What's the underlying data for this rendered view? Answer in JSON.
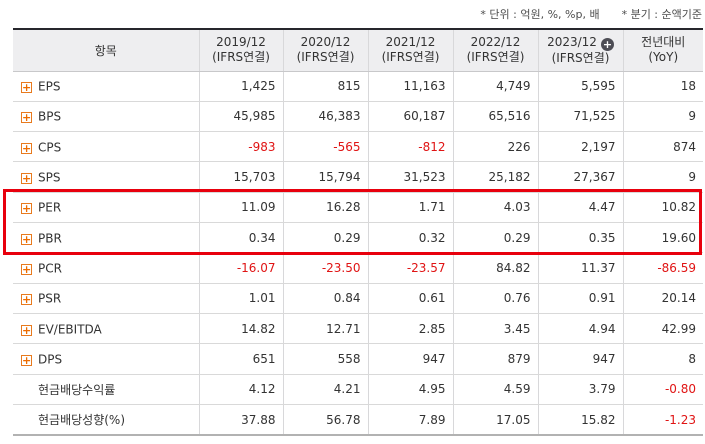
{
  "meta": {
    "unit_note": "* 단위 : 억원, %, %p, 배",
    "basis_note": "* 분기 : 순액기준"
  },
  "table": {
    "item_column_header": "항목",
    "columns": [
      {
        "period": "2019/12",
        "standard": "(IFRS연결)",
        "has_add_icon": false
      },
      {
        "period": "2020/12",
        "standard": "(IFRS연결)",
        "has_add_icon": false
      },
      {
        "period": "2021/12",
        "standard": "(IFRS연결)",
        "has_add_icon": false
      },
      {
        "period": "2022/12",
        "standard": "(IFRS연결)",
        "has_add_icon": false
      },
      {
        "period": "2023/12",
        "standard": "(IFRS연결)",
        "has_add_icon": true
      },
      {
        "period": "전년대비",
        "standard": "(YoY)",
        "has_add_icon": false
      }
    ],
    "rows": [
      {
        "label": "EPS",
        "expand_icon": true,
        "highlighted": false,
        "values": [
          "1,425",
          "815",
          "11,163",
          "4,749",
          "5,595",
          "18"
        ]
      },
      {
        "label": "BPS",
        "expand_icon": true,
        "highlighted": false,
        "values": [
          "45,985",
          "46,383",
          "60,187",
          "65,516",
          "71,525",
          "9"
        ]
      },
      {
        "label": "CPS",
        "expand_icon": true,
        "highlighted": false,
        "values": [
          "-983",
          "-565",
          "-812",
          "226",
          "2,197",
          "874"
        ]
      },
      {
        "label": "SPS",
        "expand_icon": true,
        "highlighted": false,
        "values": [
          "15,703",
          "15,794",
          "31,523",
          "25,182",
          "27,367",
          "9"
        ]
      },
      {
        "label": "PER",
        "expand_icon": true,
        "highlighted": true,
        "values": [
          "11.09",
          "16.28",
          "1.71",
          "4.03",
          "4.47",
          "10.82"
        ]
      },
      {
        "label": "PBR",
        "expand_icon": true,
        "highlighted": true,
        "values": [
          "0.34",
          "0.29",
          "0.32",
          "0.29",
          "0.35",
          "19.60"
        ]
      },
      {
        "label": "PCR",
        "expand_icon": true,
        "highlighted": false,
        "values": [
          "-16.07",
          "-23.50",
          "-23.57",
          "84.82",
          "11.37",
          "-86.59"
        ]
      },
      {
        "label": "PSR",
        "expand_icon": true,
        "highlighted": false,
        "values": [
          "1.01",
          "0.84",
          "0.61",
          "0.76",
          "0.91",
          "20.14"
        ]
      },
      {
        "label": "EV/EBITDA",
        "expand_icon": true,
        "highlighted": false,
        "values": [
          "14.82",
          "12.71",
          "2.85",
          "3.45",
          "4.94",
          "42.99"
        ]
      },
      {
        "label": "DPS",
        "expand_icon": true,
        "highlighted": false,
        "values": [
          "651",
          "558",
          "947",
          "879",
          "947",
          "8"
        ]
      },
      {
        "label": "현금배당수익률",
        "expand_icon": false,
        "highlighted": false,
        "values": [
          "4.12",
          "4.21",
          "4.95",
          "4.59",
          "3.79",
          "-0.80"
        ]
      },
      {
        "label": "현금배당성향(%)",
        "expand_icon": false,
        "highlighted": false,
        "values": [
          "37.88",
          "56.78",
          "7.89",
          "17.05",
          "15.82",
          "-1.23"
        ]
      }
    ]
  },
  "icons": {
    "expand_row_icon": "plus-square",
    "add_column_icon": "plus-circle"
  },
  "colors": {
    "header_background": "#eeeef0",
    "value_text": "#333333",
    "negative_value": "#e01414",
    "expand_icon_orange": "#ed6c00",
    "highlight_border": "#e8000d",
    "table_top_border": "#26262c"
  }
}
